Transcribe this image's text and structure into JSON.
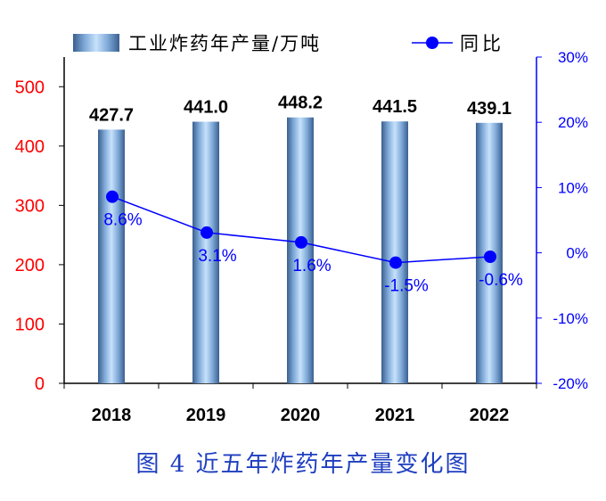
{
  "caption": "图 4  近五年炸药年产量变化图",
  "chart_data": {
    "type": "bar",
    "categories": [
      "2018",
      "2019",
      "2020",
      "2021",
      "2022"
    ],
    "series": [
      {
        "name": "工业炸药年产量/万吨",
        "type": "bar",
        "axis": "left",
        "values": [
          427.7,
          441.0,
          448.2,
          441.5,
          439.1
        ],
        "labels": [
          "427.7",
          "441.0",
          "448.2",
          "441.5",
          "439.1"
        ]
      },
      {
        "name": "同比",
        "type": "line",
        "axis": "right",
        "values": [
          8.6,
          3.1,
          1.6,
          -1.5,
          -0.6
        ],
        "labels": [
          "8.6%",
          "3.1%",
          "1.6%",
          "-1.5%",
          "-0.6%"
        ]
      }
    ],
    "y_left": {
      "lim": [
        0,
        550
      ],
      "ticks": [
        0,
        100,
        200,
        300,
        400,
        500
      ],
      "color": "#ff0000"
    },
    "y_right": {
      "lim": [
        -20,
        30
      ],
      "ticks": [
        -20,
        -10,
        0,
        10,
        20,
        30
      ],
      "tick_labels": [
        "-20%",
        "-10%",
        "0%",
        "10%",
        "20%",
        "30%"
      ],
      "color": "#0000ff"
    },
    "legend_position": "top",
    "grid": false,
    "colors": {
      "bar": "#7fa9d8",
      "line": "#0000ff"
    }
  }
}
